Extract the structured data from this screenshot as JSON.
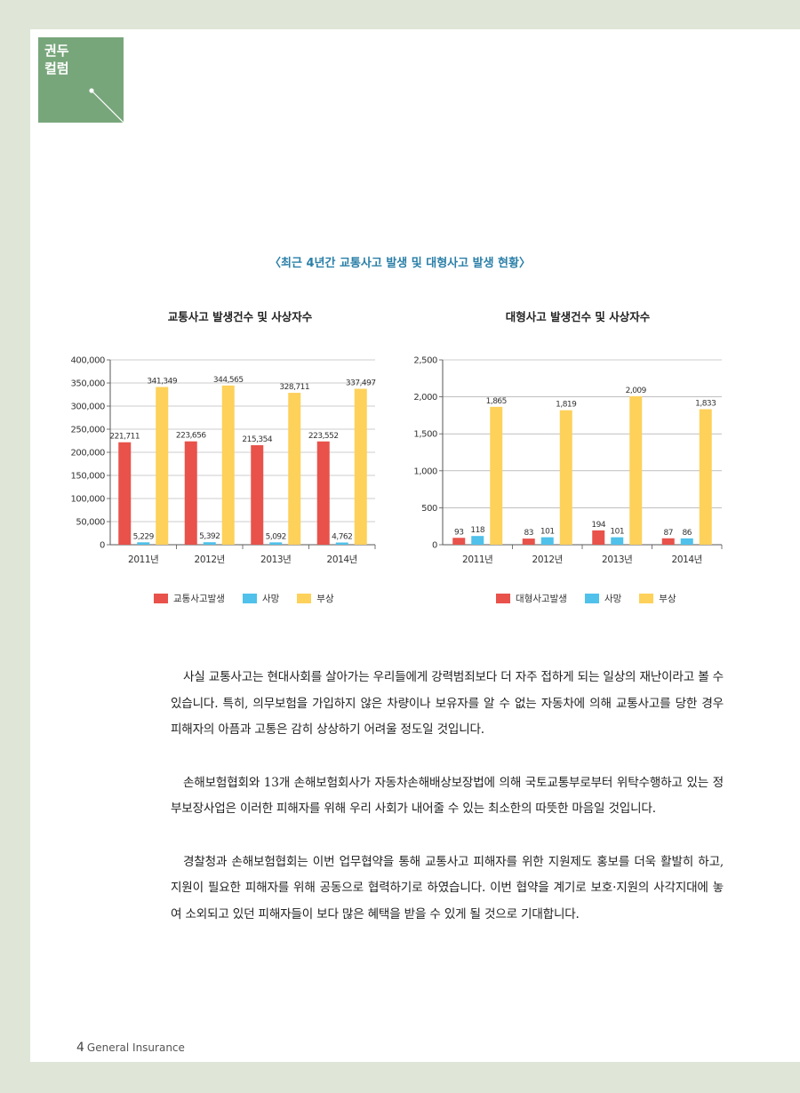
{
  "tag": {
    "label": "권두\n컬럼"
  },
  "main_title": "〈최근 4년간 교통사고 발생 및 대형사고 발생 현황〉",
  "chart_data": [
    {
      "type": "bar",
      "title": "교통사고 발생건수 및 사상자수",
      "categories": [
        "2011년",
        "2012년",
        "2013년",
        "2014년"
      ],
      "series": [
        {
          "name": "교통사고발생",
          "values": [
            221711,
            223656,
            215354,
            223552
          ],
          "labels": [
            "221,711",
            "223,656",
            "215,354",
            "223,552"
          ],
          "color": "#e8524a"
        },
        {
          "name": "사망",
          "values": [
            5229,
            5392,
            5092,
            4762
          ],
          "labels": [
            "5,229",
            "5,392",
            "5,092",
            "4,762"
          ],
          "color": "#4fc1ea"
        },
        {
          "name": "부상",
          "values": [
            341349,
            344565,
            328711,
            337497
          ],
          "labels": [
            "341,349",
            "344,565",
            "328,711",
            "337,497"
          ],
          "color": "#fdd15a"
        }
      ],
      "ylim": [
        0,
        400000
      ],
      "yticks": [
        "0",
        "50,000",
        "100,000",
        "150,000",
        "200,000",
        "250,000",
        "300,000",
        "350,000",
        "400,000"
      ],
      "grid": true,
      "legend": "bottom"
    },
    {
      "type": "bar",
      "title": "대형사고 발생건수 및 사상자수",
      "categories": [
        "2011년",
        "2012년",
        "2013년",
        "2014년"
      ],
      "series": [
        {
          "name": "대형사고발생",
          "values": [
            93,
            83,
            194,
            87
          ],
          "labels": [
            "93",
            "83",
            "194",
            "87"
          ],
          "color": "#e8524a"
        },
        {
          "name": "사망",
          "values": [
            118,
            101,
            101,
            86
          ],
          "labels": [
            "118",
            "101",
            "101",
            "86"
          ],
          "color": "#4fc1ea"
        },
        {
          "name": "부상",
          "values": [
            1865,
            1819,
            2009,
            1833
          ],
          "labels": [
            "1,865",
            "1,819",
            "2,009",
            "1,833"
          ],
          "color": "#fdd15a"
        }
      ],
      "ylim": [
        0,
        2500
      ],
      "yticks": [
        "0",
        "500",
        "1,000",
        "1,500",
        "2,000",
        "2,500"
      ],
      "grid": true,
      "legend": "bottom"
    }
  ],
  "paragraphs": [
    "사실 교통사고는 현대사회를 살아가는 우리들에게 강력범죄보다 더 자주 접하게 되는 일상의 재난이라고 볼 수 있습니다. 특히, 의무보험을 가입하지 않은 차량이나 보유자를 알 수 없는 자동차에 의해 교통사고를 당한 경우 피해자의 아픔과 고통은 감히 상상하기 어려울 정도일 것입니다.",
    "손해보험협회와 13개 손해보험회사가 자동차손해배상보장법에 의해 국토교통부로부터 위탁수행하고 있는 정부보장사업은 이러한 피해자를 위해 우리 사회가 내어줄 수 있는 최소한의 따뜻한 마음일 것입니다.",
    "경찰청과 손해보험협회는 이번 업무협약을 통해 교통사고 피해자를 위한 지원제도 홍보를 더욱 활발히 하고, 지원이 필요한 피해자를 위해 공동으로 협력하기로 하였습니다. 이번 협약을 계기로 보호·지원의 사각지대에 놓여 소외되고 있던 피해자들이 보다 많은 혜택을 받을 수 있게 될 것으로 기대합니다."
  ],
  "footer": {
    "page_number": "4",
    "publication": "General Insurance"
  }
}
